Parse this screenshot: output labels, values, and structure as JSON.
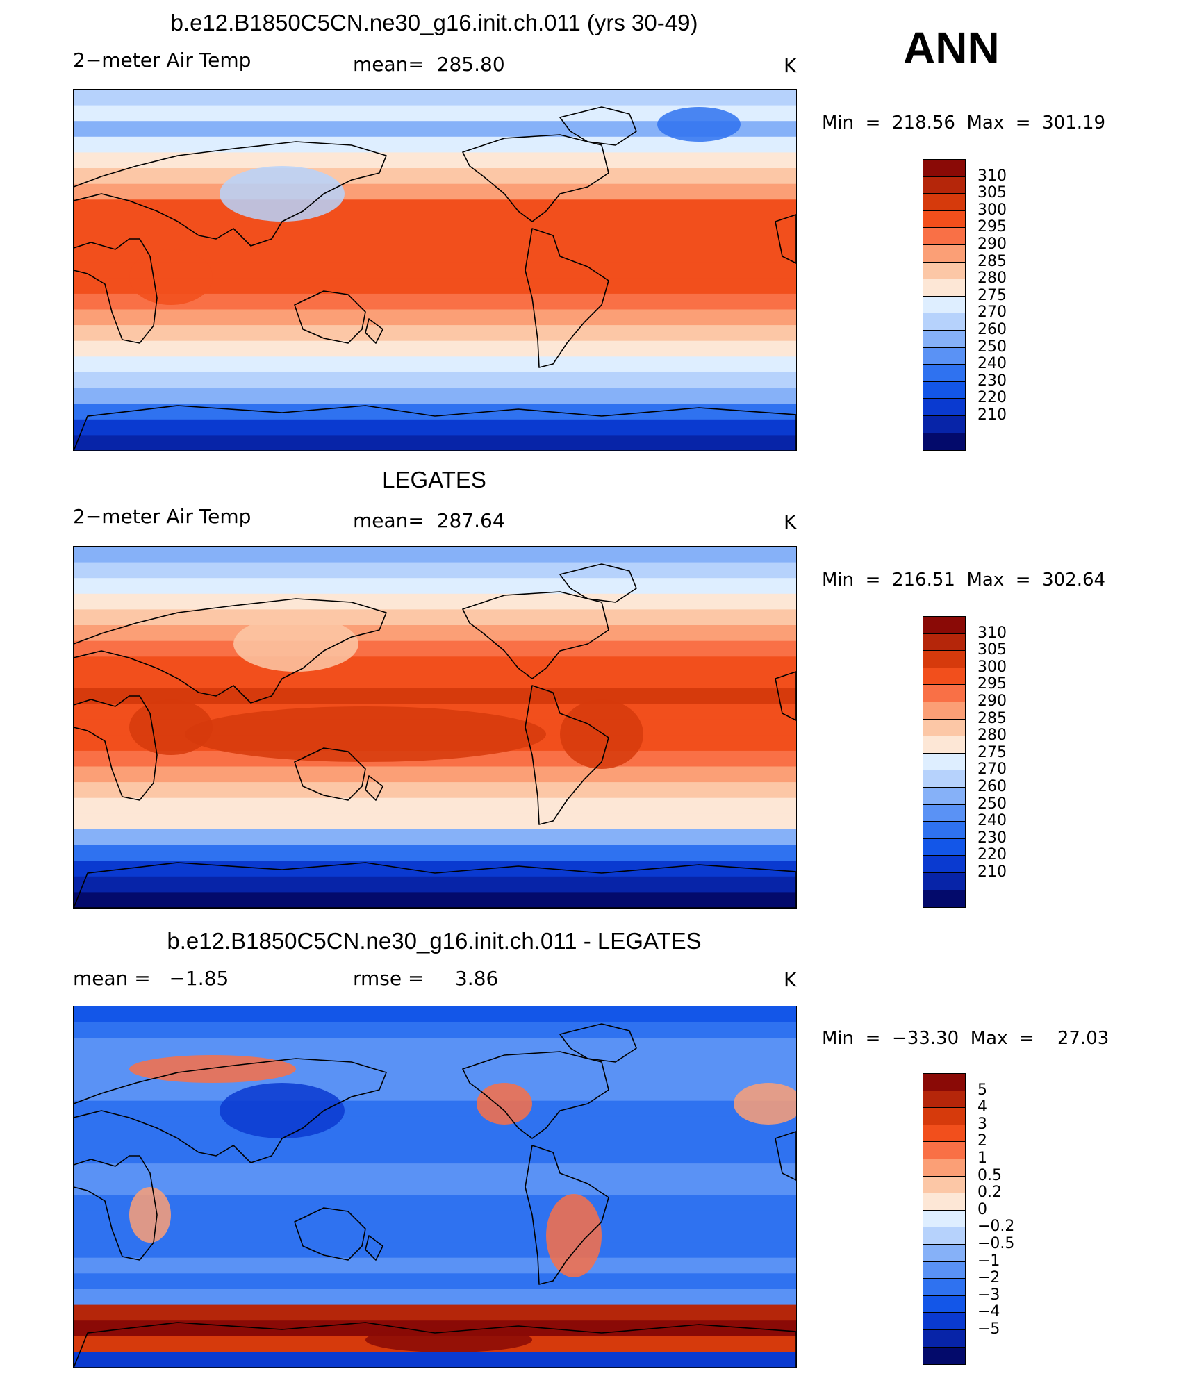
{
  "season": "ANN",
  "colors": {
    "temp_scale": [
      "#030a6b",
      "#0724a8",
      "#0a3ad0",
      "#1356e8",
      "#2f72f0",
      "#5a92f5",
      "#86b1f8",
      "#b6d2fc",
      "#deeeff",
      "#fde7d6",
      "#fcc7a6",
      "#fb9f76",
      "#f97046",
      "#f24f1c",
      "#d63a0c",
      "#b5260a",
      "#8a0a06"
    ],
    "diff_scale": [
      "#030a6b",
      "#0724a8",
      "#0a3ad0",
      "#1356e8",
      "#2f72f0",
      "#5a92f5",
      "#86b1f8",
      "#b6d2fc",
      "#deeeff",
      "#fde7d6",
      "#fcc7a6",
      "#fb9f76",
      "#f97046",
      "#f24f1c",
      "#d63a0c",
      "#b5260a",
      "#8a0a06"
    ],
    "land_outline": "#000000"
  },
  "panels": [
    {
      "title": "b.e12.B1850C5CN.ne30_g16.init.ch.011 (yrs 30-49)",
      "variable": "2−meter Air Temp",
      "stat": "mean=  285.80",
      "units": "K",
      "minmax": "Min  =  218.56  Max  =  301.19",
      "colorbar_labels": [
        "310",
        "305",
        "300",
        "295",
        "290",
        "285",
        "280",
        "275",
        "270",
        "260",
        "250",
        "240",
        "230",
        "220",
        "210"
      ]
    },
    {
      "title": "LEGATES",
      "variable": "2−meter Air Temp",
      "stat": "mean=  287.64",
      "units": "K",
      "minmax": "Min  =  216.51  Max  =  302.64",
      "colorbar_labels": [
        "310",
        "305",
        "300",
        "295",
        "290",
        "285",
        "280",
        "275",
        "270",
        "260",
        "250",
        "240",
        "230",
        "220",
        "210"
      ]
    },
    {
      "title": "b.e12.B1850C5CN.ne30_g16.init.ch.011 - LEGATES",
      "variable": "mean =   −1.85",
      "stat": "rmse =     3.86",
      "units": "K",
      "minmax": "Min  =  −33.30  Max  =    27.03",
      "colorbar_labels": [
        "5",
        "4",
        "3",
        "2",
        "1",
        "0.5",
        "0.2",
        "0",
        "−0.2",
        "−0.5",
        "−1",
        "−2",
        "−3",
        "−4",
        "−5"
      ]
    }
  ]
}
